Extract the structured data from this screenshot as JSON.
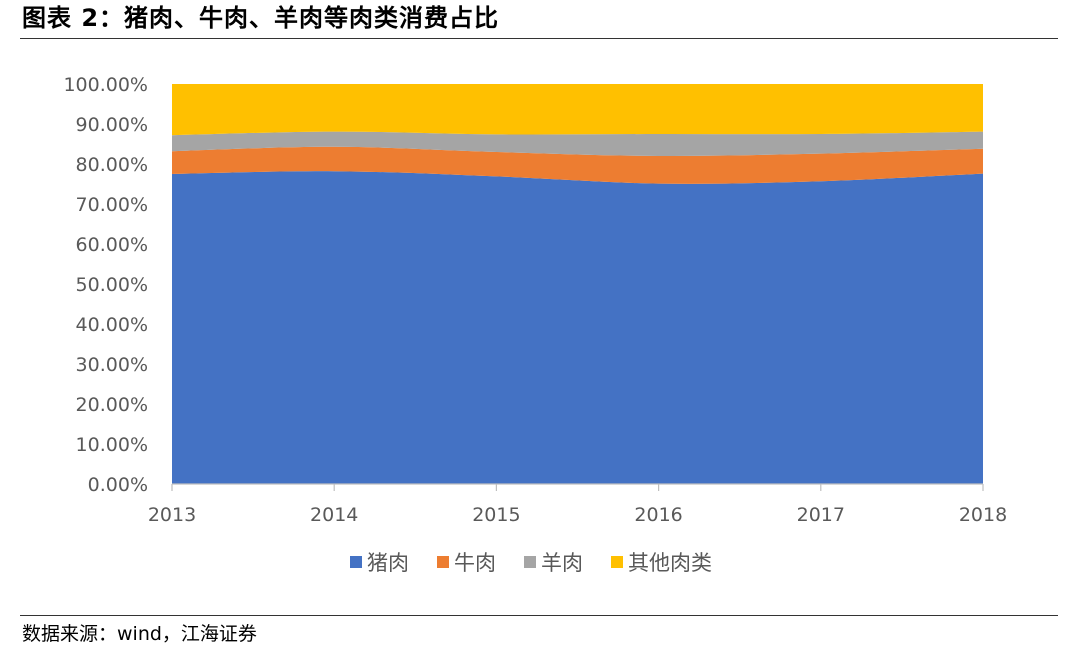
{
  "title": "图表 2：猪肉、牛肉、羊肉等肉类消费占比",
  "source": "数据来源：wind，江海证券",
  "chart_data": {
    "type": "area",
    "stacked": true,
    "x": [
      "2013",
      "2014",
      "2015",
      "2016",
      "2017",
      "2018"
    ],
    "y_ticks": [
      "0.00%",
      "10.00%",
      "20.00%",
      "30.00%",
      "40.00%",
      "50.00%",
      "60.00%",
      "70.00%",
      "80.00%",
      "90.00%",
      "100.00%"
    ],
    "ylim": [
      0,
      100
    ],
    "legend_position": "bottom",
    "grid": false,
    "series": [
      {
        "name": "猪肉",
        "color": "#4472C4",
        "values": [
          77.5,
          78.2,
          76.9,
          75.1,
          75.7,
          77.6
        ]
      },
      {
        "name": "牛肉",
        "color": "#ED7D31",
        "values": [
          5.7,
          6.1,
          6.1,
          6.9,
          6.9,
          6.2
        ]
      },
      {
        "name": "羊肉",
        "color": "#A5A5A5",
        "values": [
          4.0,
          3.8,
          4.4,
          5.5,
          4.9,
          4.3
        ]
      },
      {
        "name": "其他肉类",
        "color": "#FFC000",
        "values": [
          12.8,
          11.9,
          12.6,
          12.5,
          12.5,
          11.9
        ]
      }
    ]
  }
}
